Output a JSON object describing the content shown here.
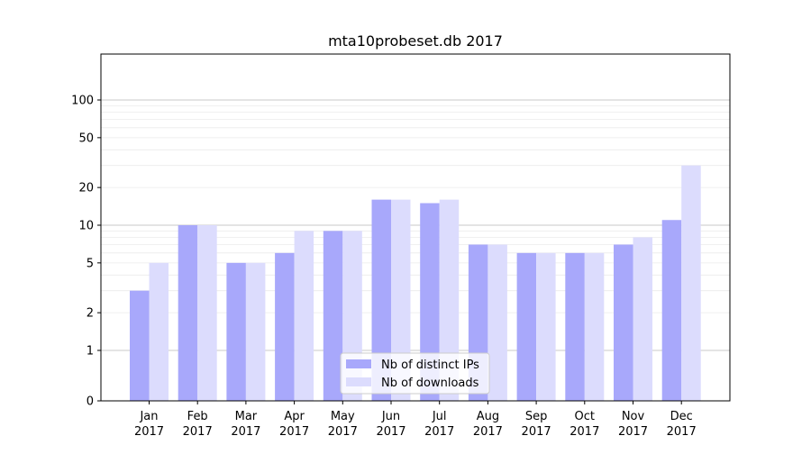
{
  "chart_data": {
    "type": "bar",
    "title": "mta10probeset.db 2017",
    "xlabel": "",
    "ylabel": "",
    "y_scale": "symlog",
    "ylim": [
      0,
      120
    ],
    "y_ticks": [
      0,
      1,
      2,
      5,
      10,
      20,
      50,
      100
    ],
    "y_tick_labels": [
      "0",
      "1",
      "2",
      "5",
      "10",
      "20",
      "50",
      "100"
    ],
    "grid": "horizontal",
    "legend_position": "bottom-center",
    "categories": [
      [
        "Jan",
        "2017"
      ],
      [
        "Feb",
        "2017"
      ],
      [
        "Mar",
        "2017"
      ],
      [
        "Apr",
        "2017"
      ],
      [
        "May",
        "2017"
      ],
      [
        "Jun",
        "2017"
      ],
      [
        "Jul",
        "2017"
      ],
      [
        "Aug",
        "2017"
      ],
      [
        "Sep",
        "2017"
      ],
      [
        "Oct",
        "2017"
      ],
      [
        "Nov",
        "2017"
      ],
      [
        "Dec",
        "2017"
      ]
    ],
    "series": [
      {
        "name": "Nb of distinct IPs",
        "color": "#a8a8fb",
        "values": [
          3,
          10,
          5,
          6,
          9,
          16,
          15,
          7,
          6,
          6,
          7,
          11
        ]
      },
      {
        "name": "Nb of downloads",
        "color": "#dcdcfd",
        "values": [
          5,
          10,
          5,
          9,
          9,
          16,
          16,
          7,
          6,
          6,
          8,
          30
        ]
      }
    ]
  }
}
